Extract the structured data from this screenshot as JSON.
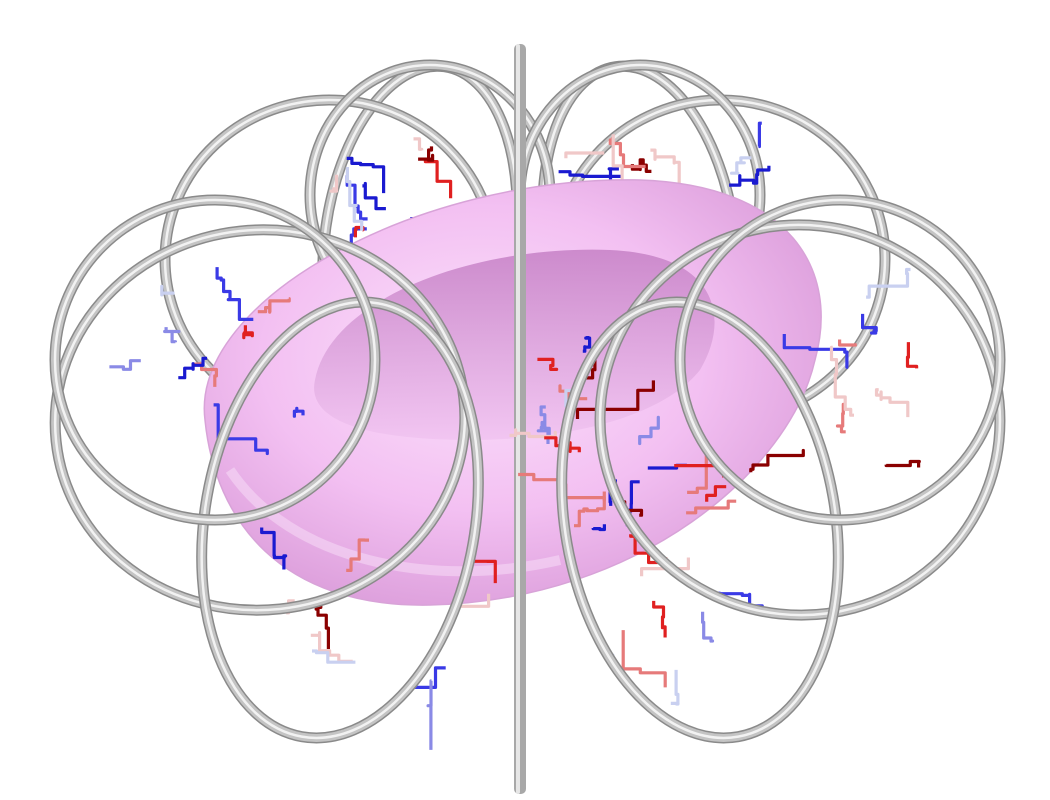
{
  "scene": {
    "background": "#ffffff",
    "plasma_color": "#f3c0f2",
    "coil_color": "#c4c4c4",
    "coil_highlight": "#f2f2f2",
    "coil_shadow": "#8a8a8a",
    "trace_colors": [
      "#1a1ad0",
      "#3a3ae6",
      "#8a8ae6",
      "#c9d0f0",
      "#f0c8c8",
      "#e67a7a",
      "#e02020",
      "#8a0000"
    ],
    "coil_count": 12
  }
}
